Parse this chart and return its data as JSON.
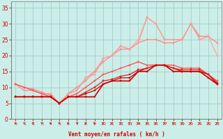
{
  "x": [
    0,
    1,
    2,
    3,
    4,
    5,
    6,
    7,
    8,
    9,
    10,
    11,
    12,
    13,
    14,
    15,
    16,
    17,
    18,
    19,
    20,
    21,
    22,
    23
  ],
  "background_color": "#cceee8",
  "grid_color": "#aacccc",
  "xlabel": "Vent moyen/en rafales ( km/h )",
  "xlabel_color": "#cc0000",
  "tick_color": "#cc0000",
  "arrow_color": "#cc0000",
  "lines": [
    {
      "y": [
        7,
        7,
        7,
        7,
        7,
        5,
        7,
        7,
        7,
        7,
        11,
        12,
        12,
        12,
        15,
        15,
        17,
        17,
        15,
        15,
        15,
        15,
        13,
        11
      ],
      "color": "#cc0000",
      "lw": 1.2,
      "marker": "s",
      "ms": 2.0,
      "zorder": 5
    },
    {
      "y": [
        7,
        7,
        7,
        7,
        7,
        5,
        7,
        7,
        8,
        9,
        11,
        12,
        13,
        13,
        15,
        16,
        17,
        17,
        16,
        15,
        15,
        15,
        14,
        11
      ],
      "color": "#cc0000",
      "lw": 0.9,
      "marker": "s",
      "ms": 1.8,
      "zorder": 4
    },
    {
      "y": [
        7,
        7,
        7,
        7,
        7,
        5,
        7,
        7,
        8.5,
        10,
        12,
        12.5,
        13.5,
        14,
        15.5,
        16,
        17,
        17,
        16,
        15.5,
        15.5,
        15.5,
        14,
        11.5
      ],
      "color": "#dd2222",
      "lw": 0.9,
      "marker": "s",
      "ms": 1.6,
      "zorder": 4
    },
    {
      "y": [
        11,
        10,
        9,
        8,
        7,
        5,
        7,
        8,
        10,
        12,
        14,
        15,
        16,
        17,
        18,
        17,
        17,
        17,
        17,
        16,
        16,
        16,
        14,
        12
      ],
      "color": "#ff5555",
      "lw": 1.0,
      "marker": "s",
      "ms": 2.0,
      "zorder": 3
    },
    {
      "y": [
        11,
        10,
        9.5,
        8.5,
        7.5,
        5,
        8,
        10,
        12,
        15,
        18,
        20,
        22,
        22,
        24,
        25,
        25,
        24,
        24,
        25,
        30,
        26,
        26,
        24
      ],
      "color": "#ff8888",
      "lw": 0.9,
      "marker": "s",
      "ms": 1.8,
      "zorder": 2
    },
    {
      "y": [
        11,
        9,
        9,
        8,
        8,
        5,
        8,
        9,
        13,
        14,
        19,
        20,
        23,
        22,
        24,
        32,
        30,
        25,
        25,
        25,
        30,
        25,
        26,
        null
      ],
      "color": "#ff9999",
      "lw": 0.9,
      "marker": "s",
      "ms": 1.6,
      "zorder": 2
    },
    {
      "y": [
        11,
        9,
        9,
        8,
        8,
        5,
        8,
        9,
        13,
        15,
        19,
        20,
        23,
        22,
        25,
        32,
        30,
        25,
        25,
        25,
        30,
        26,
        26,
        20
      ],
      "color": "#ffaaaa",
      "lw": 1.0,
      "marker": "s",
      "ms": 1.8,
      "zorder": 1
    }
  ],
  "ylim": [
    0,
    37
  ],
  "yticks": [
    0,
    5,
    10,
    15,
    20,
    25,
    30,
    35
  ],
  "xlim": [
    -0.5,
    23.5
  ],
  "figsize": [
    3.2,
    2.0
  ],
  "dpi": 100
}
